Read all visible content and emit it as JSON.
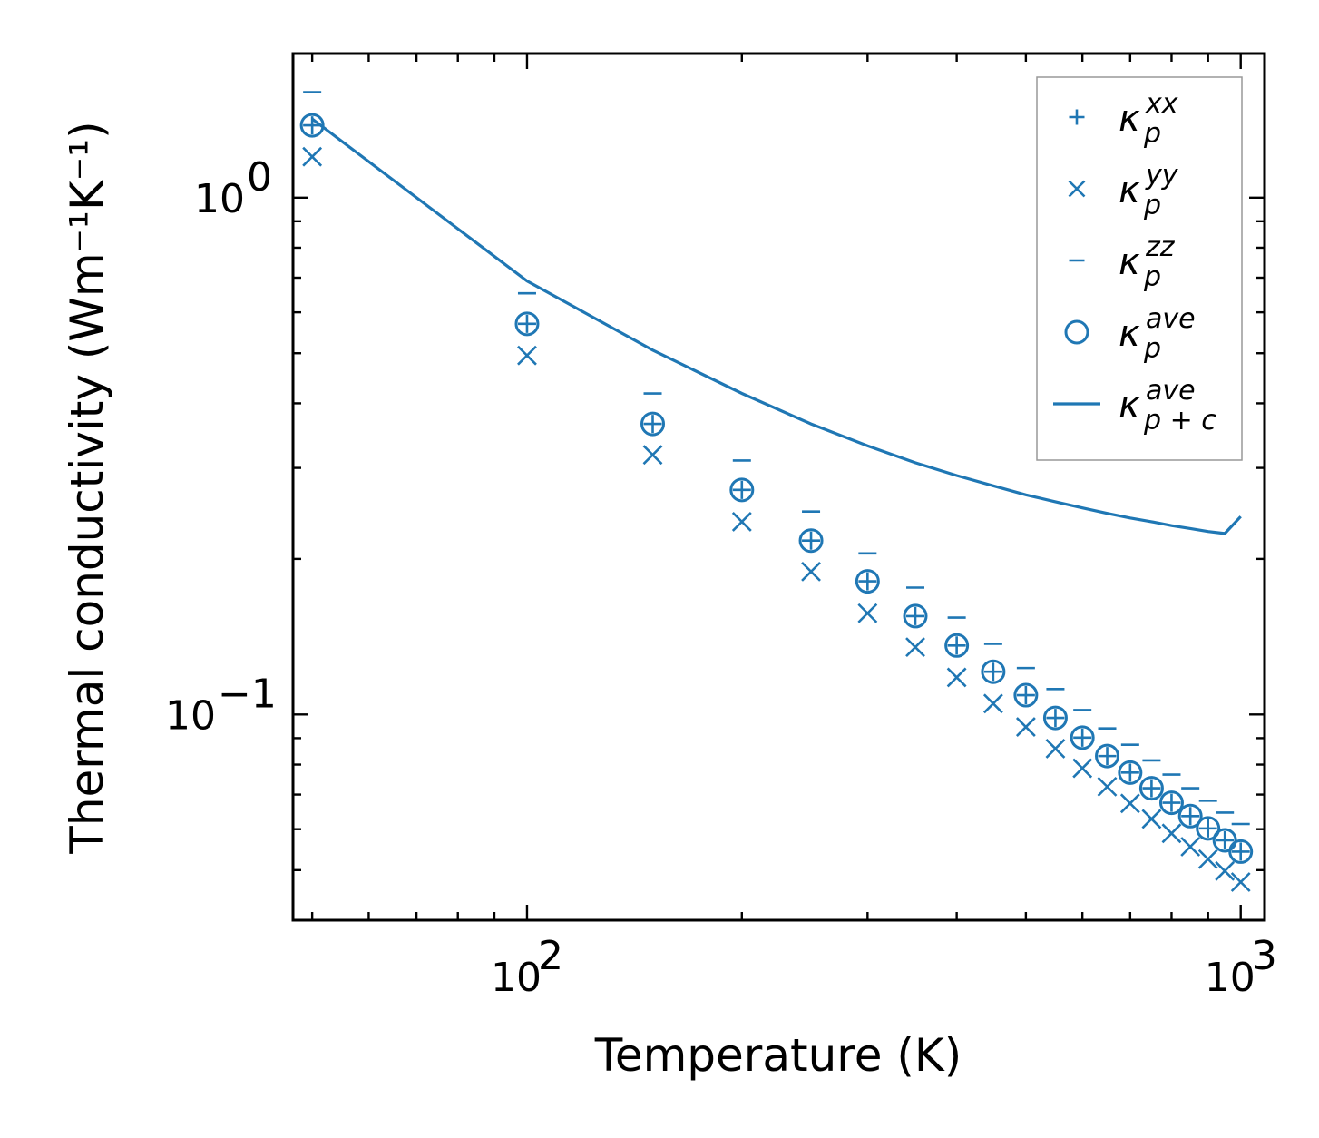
{
  "chart_data": {
    "type": "scatter",
    "xscale": "log",
    "yscale": "log",
    "xlabel": "Temperature (K)",
    "ylabel": "Thermal conductivity (Wm⁻¹K⁻¹)",
    "xlim": [
      47,
      1080
    ],
    "ylim": [
      0.04,
      1.9
    ],
    "xticks": [
      {
        "value": 100,
        "base": "10",
        "exp": "2"
      },
      {
        "value": 1000,
        "base": "10",
        "exp": "3"
      }
    ],
    "yticks": [
      {
        "value": 0.1,
        "base": "10",
        "exp": "−1"
      },
      {
        "value": 1,
        "base": "10",
        "exp": "0"
      }
    ],
    "color": "#1f77b4",
    "x": [
      50,
      100,
      150,
      200,
      250,
      300,
      350,
      400,
      450,
      500,
      550,
      600,
      650,
      700,
      750,
      800,
      850,
      900,
      950,
      1000
    ],
    "series": [
      {
        "name": "xx",
        "legend_main": "κ",
        "legend_sub": "p",
        "legend_sup": "xx",
        "marker": "plus",
        "values": [
          1.38,
          0.57,
          0.365,
          0.272,
          0.217,
          0.181,
          0.155,
          0.136,
          0.121,
          0.109,
          0.0985,
          0.0902,
          0.0831,
          0.0772,
          0.072,
          0.0675,
          0.0636,
          0.0602,
          0.0571,
          0.0543
        ]
      },
      {
        "name": "yy",
        "legend_main": "κ",
        "legend_sub": "p",
        "legend_sup": "yy",
        "marker": "x",
        "values": [
          1.2,
          0.495,
          0.318,
          0.236,
          0.189,
          0.157,
          0.135,
          0.118,
          0.105,
          0.0946,
          0.0859,
          0.0787,
          0.0725,
          0.0673,
          0.0628,
          0.0589,
          0.0555,
          0.0525,
          0.0498,
          0.0474
        ]
      },
      {
        "name": "zz",
        "legend_main": "κ",
        "legend_sub": "p",
        "legend_sup": "zz",
        "marker": "hline",
        "values": [
          1.6,
          0.653,
          0.418,
          0.31,
          0.247,
          0.205,
          0.176,
          0.154,
          0.137,
          0.123,
          0.112,
          0.102,
          0.094,
          0.0874,
          0.0815,
          0.0765,
          0.072,
          0.0681,
          0.0646,
          0.0614
        ]
      },
      {
        "name": "ave",
        "legend_main": "κ",
        "legend_sub": "p",
        "legend_sup": "ave",
        "marker": "circle",
        "values": [
          1.38,
          0.57,
          0.365,
          0.272,
          0.217,
          0.181,
          0.155,
          0.136,
          0.121,
          0.109,
          0.0985,
          0.0902,
          0.0831,
          0.0772,
          0.072,
          0.0675,
          0.0636,
          0.0602,
          0.0571,
          0.0543
        ]
      }
    ],
    "line": {
      "name": "p+c ave",
      "legend_main": "κ",
      "legend_sub": "p + c",
      "legend_sup": "ave",
      "x": [
        50,
        100,
        150,
        200,
        250,
        300,
        350,
        400,
        450,
        500,
        550,
        600,
        650,
        700,
        750,
        800,
        850,
        900,
        950,
        1000
      ],
      "values": [
        1.42,
        0.69,
        0.507,
        0.418,
        0.365,
        0.331,
        0.307,
        0.29,
        0.277,
        0.266,
        0.258,
        0.251,
        0.245,
        0.24,
        0.236,
        0.232,
        0.229,
        0.226,
        0.224,
        0.2415
      ]
    },
    "legend_position": "top-right"
  }
}
